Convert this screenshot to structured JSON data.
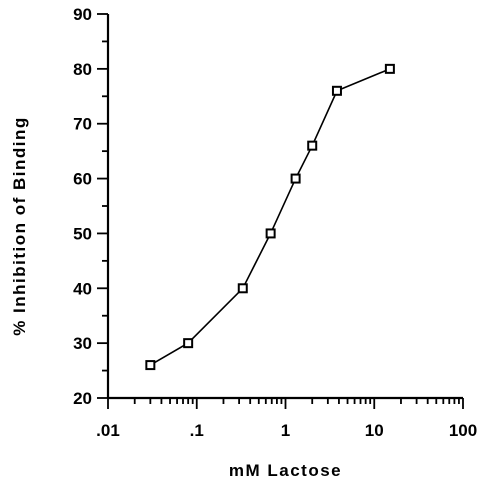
{
  "chart_data": {
    "type": "line",
    "title": "",
    "xlabel": "mM Lactose",
    "ylabel": "% Inhibition of Binding",
    "xscale": "log",
    "xlim": [
      0.01,
      100
    ],
    "ylim": [
      20,
      90
    ],
    "grid": false,
    "x_tick_labels": [
      ".01",
      ".1",
      "1",
      "10",
      "100"
    ],
    "x_tick_values": [
      0.01,
      0.1,
      1,
      10,
      100
    ],
    "y_tick_labels": [
      "20",
      "30",
      "40",
      "50",
      "60",
      "70",
      "80",
      "90"
    ],
    "y_tick_values": [
      20,
      30,
      40,
      50,
      60,
      70,
      80,
      90
    ],
    "series": [
      {
        "marker": "open-square",
        "color": "#000000",
        "x": [
          0.03,
          0.08,
          0.33,
          0.68,
          1.3,
          2.0,
          3.8,
          15
        ],
        "y": [
          26,
          30,
          40,
          50,
          60,
          66,
          76,
          80
        ]
      }
    ]
  }
}
